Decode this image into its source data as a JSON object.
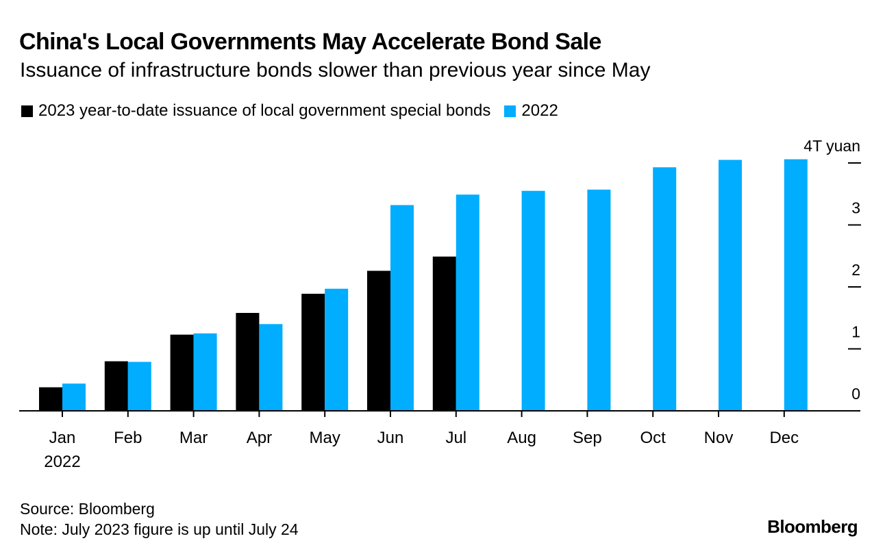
{
  "colors": {
    "series_2023": "#000000",
    "series_2022": "#00adff",
    "axis": "#000000",
    "text": "#000000"
  },
  "chart_data": {
    "type": "bar",
    "title": "China's Local Governments May Accelerate Bond Sale",
    "subtitle": "Issuance of infrastructure bonds slower than previous year since May",
    "categories": [
      "Jan",
      "Feb",
      "Mar",
      "Apr",
      "May",
      "Jun",
      "Jul",
      "Aug",
      "Sep",
      "Oct",
      "Nov",
      "Dec"
    ],
    "x_sublabel": "2022",
    "series": [
      {
        "name": "2023 year-to-date issuance of local government special bonds",
        "color": "#000000",
        "values": [
          0.38,
          0.8,
          1.23,
          1.58,
          1.89,
          2.26,
          2.49,
          null,
          null,
          null,
          null,
          null
        ]
      },
      {
        "name": "2022",
        "color": "#00adff",
        "values": [
          0.44,
          0.79,
          1.25,
          1.4,
          1.97,
          3.32,
          3.49,
          3.55,
          3.57,
          3.93,
          4.05,
          4.06
        ]
      }
    ],
    "y_ticks": [
      0,
      1,
      2,
      3,
      4
    ],
    "y_tick_labels": [
      "0",
      "1",
      "2",
      "3",
      "4T yuan"
    ],
    "ylim": [
      0,
      4
    ],
    "xlabel": "",
    "ylabel": "",
    "legend_position": "top-left",
    "grid": false
  },
  "footer": {
    "source": "Source: Bloomberg",
    "note": "Note: July 2023 figure is up until July 24",
    "brand": "Bloomberg"
  }
}
